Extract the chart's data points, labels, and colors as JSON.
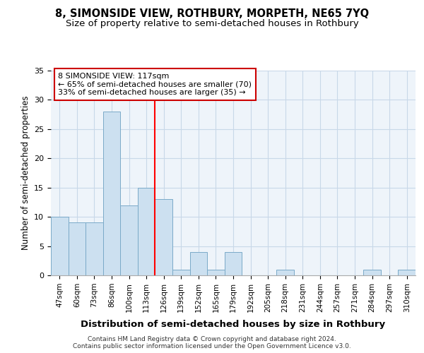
{
  "title": "8, SIMONSIDE VIEW, ROTHBURY, MORPETH, NE65 7YQ",
  "subtitle": "Size of property relative to semi-detached houses in Rothbury",
  "xlabel": "Distribution of semi-detached houses by size in Rothbury",
  "ylabel": "Number of semi-detached properties",
  "categories": [
    "47sqm",
    "60sqm",
    "73sqm",
    "86sqm",
    "100sqm",
    "113sqm",
    "126sqm",
    "139sqm",
    "152sqm",
    "165sqm",
    "179sqm",
    "192sqm",
    "205sqm",
    "218sqm",
    "231sqm",
    "244sqm",
    "257sqm",
    "271sqm",
    "284sqm",
    "297sqm",
    "310sqm"
  ],
  "values": [
    10,
    9,
    9,
    28,
    12,
    15,
    13,
    1,
    4,
    1,
    4,
    0,
    0,
    1,
    0,
    0,
    0,
    0,
    1,
    0,
    1
  ],
  "bar_color": "#cce0f0",
  "bar_edge_color": "#7aaac8",
  "property_label": "8 SIMONSIDE VIEW: 117sqm",
  "smaller_pct": "65% of semi-detached houses are smaller (70)",
  "larger_pct": "33% of semi-detached houses are larger (35)",
  "ylim": [
    0,
    35
  ],
  "yticks": [
    0,
    5,
    10,
    15,
    20,
    25,
    30,
    35
  ],
  "grid_color": "#c8d8e8",
  "background_color": "#eef4fa",
  "footer_line1": "Contains HM Land Registry data © Crown copyright and database right 2024.",
  "footer_line2": "Contains public sector information licensed under the Open Government Licence v3.0.",
  "title_fontsize": 10.5,
  "subtitle_fontsize": 9.5,
  "annotation_box_color": "#cc0000",
  "red_line_x": 5.5
}
